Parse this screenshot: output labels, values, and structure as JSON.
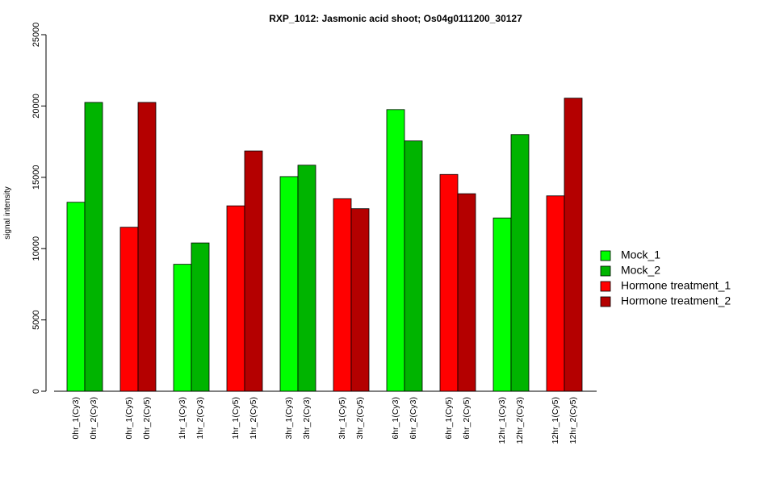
{
  "chart_data": {
    "type": "bar",
    "title": "RXP_1012: Jasmonic acid shoot; Os04g0111200_30127",
    "ylabel": "signal intensity",
    "xlabel": "",
    "ylim": [
      0,
      25000
    ],
    "yticks": [
      0,
      5000,
      10000,
      15000,
      20000,
      25000
    ],
    "grid": false,
    "legend_position": "right",
    "legend": [
      {
        "name": "Mock_1",
        "color": "#00ff00"
      },
      {
        "name": "Mock_2",
        "color": "#00b400"
      },
      {
        "name": "Hormone treatment_1",
        "color": "#ff0000"
      },
      {
        "name": "Hormone treatment_2",
        "color": "#b40000"
      }
    ],
    "bars": [
      {
        "label": "0hr_1(Cy3)",
        "value": 13250,
        "color": "#00ff00"
      },
      {
        "label": "0hr_2(Cy3)",
        "value": 20250,
        "color": "#00b400"
      },
      {
        "label": "0hr_1(Cy5)",
        "value": 11500,
        "color": "#ff0000"
      },
      {
        "label": "0hr_2(Cy5)",
        "value": 20250,
        "color": "#b40000"
      },
      {
        "label": "1hr_1(Cy3)",
        "value": 8900,
        "color": "#00ff00"
      },
      {
        "label": "1hr_2(Cy3)",
        "value": 10400,
        "color": "#00b400"
      },
      {
        "label": "1hr_1(Cy5)",
        "value": 13000,
        "color": "#ff0000"
      },
      {
        "label": "1hr_2(Cy5)",
        "value": 16850,
        "color": "#b40000"
      },
      {
        "label": "3hr_1(Cy3)",
        "value": 15050,
        "color": "#00ff00"
      },
      {
        "label": "3hr_2(Cy3)",
        "value": 15850,
        "color": "#00b400"
      },
      {
        "label": "3hr_1(Cy5)",
        "value": 13500,
        "color": "#ff0000"
      },
      {
        "label": "3hr_2(Cy5)",
        "value": 12800,
        "color": "#b40000"
      },
      {
        "label": "6hr_1(Cy3)",
        "value": 19750,
        "color": "#00ff00"
      },
      {
        "label": "6hr_2(Cy3)",
        "value": 17550,
        "color": "#00b400"
      },
      {
        "label": "6hr_1(Cy5)",
        "value": 15200,
        "color": "#ff0000"
      },
      {
        "label": "6hr_2(Cy5)",
        "value": 13850,
        "color": "#b40000"
      },
      {
        "label": "12hr_1(Cy3)",
        "value": 12150,
        "color": "#00ff00"
      },
      {
        "label": "12hr_2(Cy3)",
        "value": 18000,
        "color": "#00b400"
      },
      {
        "label": "12hr_1(Cy5)",
        "value": 13700,
        "color": "#ff0000"
      },
      {
        "label": "12hr_2(Cy5)",
        "value": 20550,
        "color": "#b40000"
      }
    ]
  }
}
